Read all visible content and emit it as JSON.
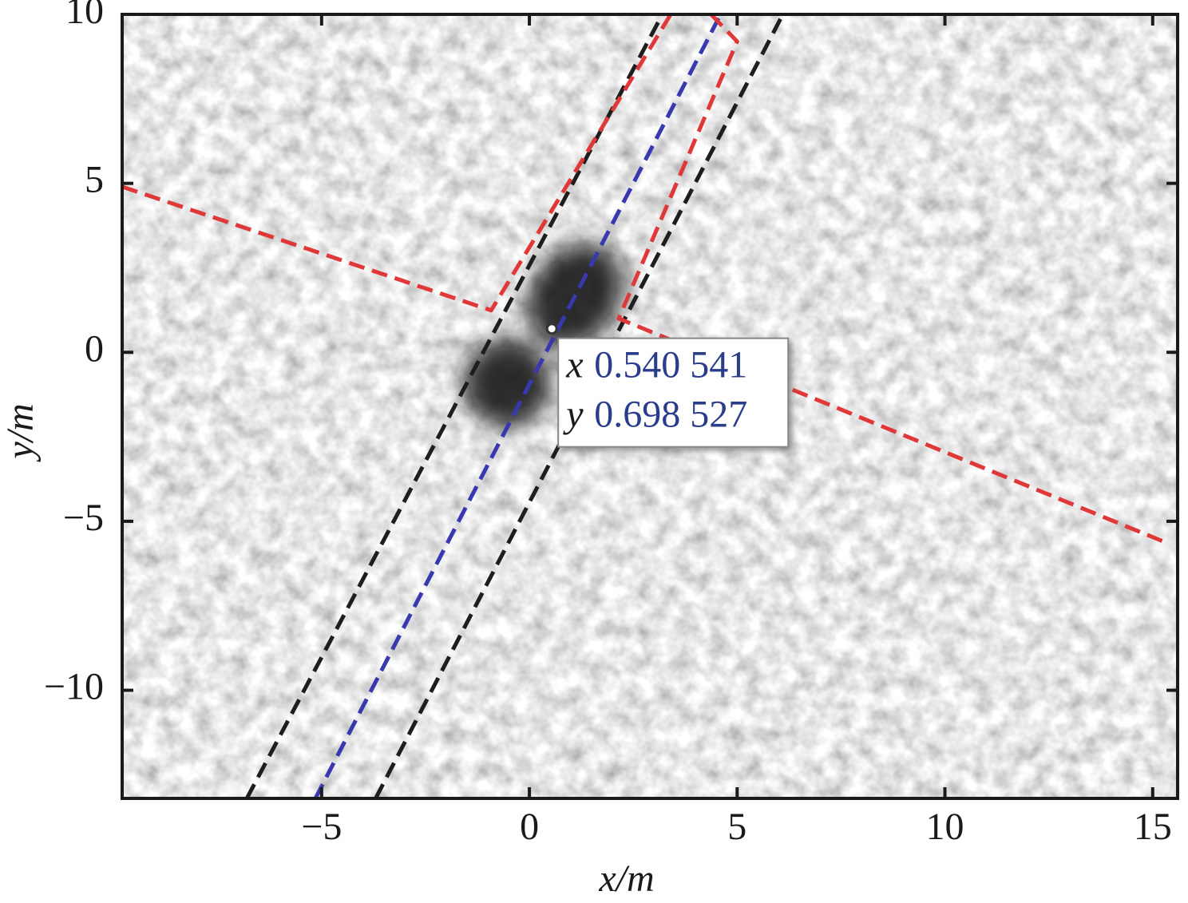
{
  "chart_data": {
    "type": "line",
    "x_label": "x/m",
    "y_label": "y/m",
    "xlim": [
      -9.8,
      15.6
    ],
    "ylim": [
      -13.2,
      10
    ],
    "xticks": [
      {
        "value": -5,
        "label": "−5"
      },
      0,
      5,
      10,
      15
    ],
    "yticks": [
      {
        "value": -10,
        "label": "−10"
      },
      {
        "value": -5,
        "label": "−5"
      },
      0,
      5,
      10
    ],
    "series": [
      {
        "color": "#1e1e1e",
        "x": [
          -6.8,
          3.2
        ],
        "values": [
          -13.2,
          10
        ]
      },
      {
        "color": "#1e1e1e",
        "x": [
          -3.7,
          6.1
        ],
        "values": [
          -13.2,
          10
        ]
      },
      {
        "color": "#3838b0",
        "x": [
          -5.15,
          4.56
        ],
        "values": [
          -13.2,
          9.9
        ]
      },
      {
        "color": "#e03838",
        "x": [
          -9.8,
          -0.92,
          3.4
        ],
        "values": [
          4.9,
          1.24,
          10
        ]
      },
      {
        "color": "#e03838",
        "x": [
          4.37,
          5.0,
          2.15,
          15.4
        ],
        "values": [
          10,
          9.2,
          1.0,
          -5.67
        ]
      }
    ],
    "datatip": {
      "x": 0.540541,
      "y": 0.698527,
      "x_name": "x",
      "x_label": "0.540 541",
      "y_name": "y",
      "y_label": "0.698 527"
    }
  }
}
